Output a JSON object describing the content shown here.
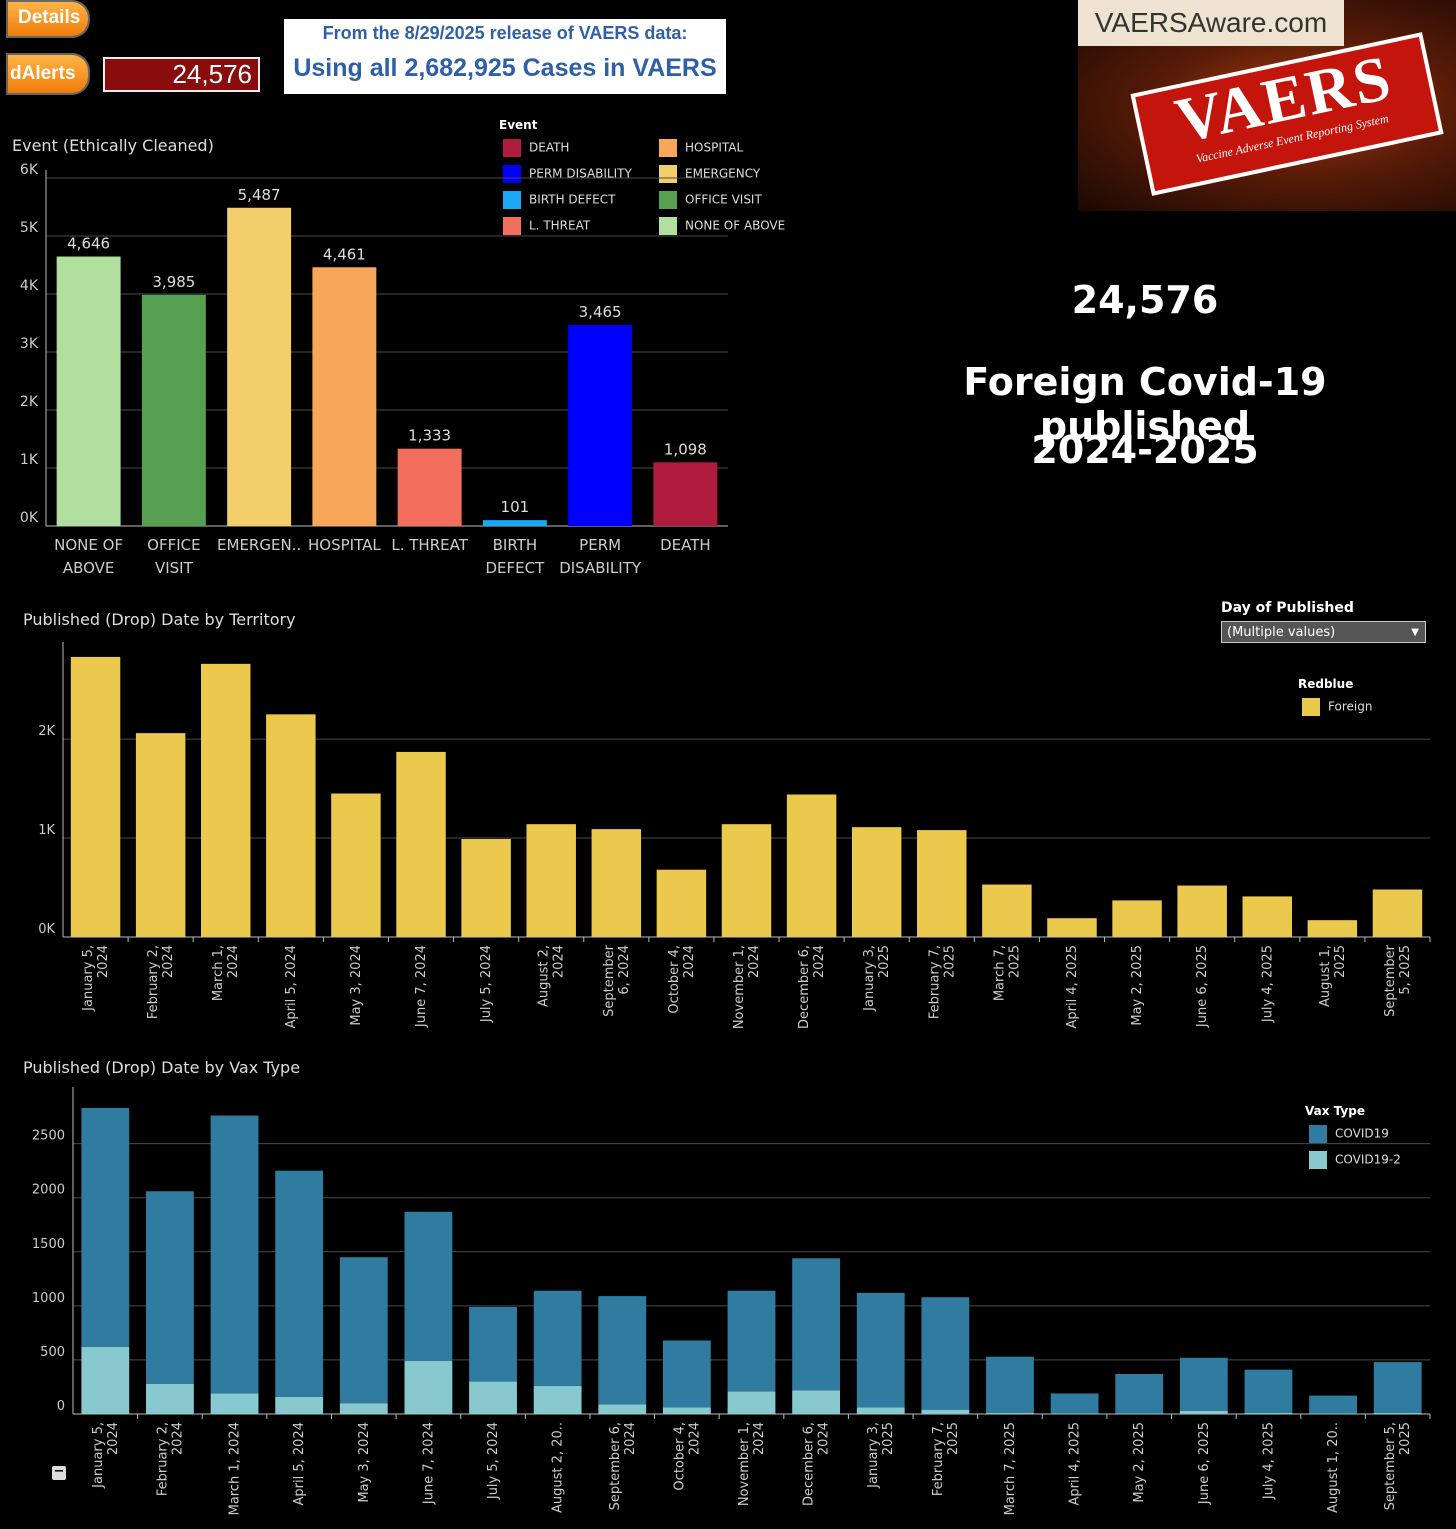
{
  "controls": {
    "details_label": "Details",
    "alerts_label": "dAlerts",
    "counter": "24,576",
    "release_line1": "From the 8/29/2025 release of VAERS data:",
    "release_line2": "Using all 2,682,925 Cases in VAERS"
  },
  "logo": {
    "site": "VAERSAware.com",
    "badge": "VAERS",
    "subtitle": "Vaccine Adverse Event Reporting System"
  },
  "headline": {
    "count": "24,576",
    "line1": "Foreign Covid-19 published",
    "line2": "2024-2025"
  },
  "event_legend": {
    "title": "Event",
    "items": [
      {
        "label": "DEATH",
        "color": "#b01c3e"
      },
      {
        "label": "HOSPITAL",
        "color": "#f7a65a"
      },
      {
        "label": "PERM DISABILITY",
        "color": "#0000ff"
      },
      {
        "label": "EMERGENCY",
        "color": "#f2cf6a"
      },
      {
        "label": "BIRTH DEFECT",
        "color": "#19a8f5"
      },
      {
        "label": "OFFICE VISIT",
        "color": "#56a04f"
      },
      {
        "label": "L. THREAT",
        "color": "#f46e5d"
      },
      {
        "label": "NONE OF ABOVE",
        "color": "#b1dfa0"
      }
    ]
  },
  "day_filter": {
    "label": "Day of Published",
    "value": "(Multiple values)"
  },
  "territory_legend": {
    "title": "Redblue",
    "items": [
      {
        "label": "Foreign",
        "color": "#eac94d"
      }
    ]
  },
  "vax_legend": {
    "title": "Vax Type",
    "items": [
      {
        "label": "COVID19",
        "color": "#307ca1"
      },
      {
        "label": "COVID19-2",
        "color": "#88c9cf"
      }
    ]
  },
  "chart_data": [
    {
      "type": "bar",
      "title": "Event (Ethically Cleaned)",
      "categories": [
        "NONE OF ABOVE",
        "OFFICE VISIT",
        "EMERGEN..",
        "HOSPITAL",
        "L. THREAT",
        "BIRTH DEFECT",
        "PERM DISABILITY",
        "DEATH"
      ],
      "tick_lines": [
        [
          "NONE OF",
          "ABOVE"
        ],
        [
          "OFFICE",
          "VISIT"
        ],
        [
          "EMERGEN.."
        ],
        [
          "HOSPITAL"
        ],
        [
          "L. THREAT"
        ],
        [
          "BIRTH",
          "DEFECT"
        ],
        [
          "PERM",
          "DISABILITY"
        ],
        [
          "DEATH"
        ]
      ],
      "values": [
        4646,
        3985,
        5487,
        4461,
        1333,
        101,
        3465,
        1098
      ],
      "data_labels": [
        "4,646",
        "3,985",
        "5,487",
        "4,461",
        "1,333",
        "101",
        "3,465",
        "1,098"
      ],
      "colors": [
        "#b1dfa0",
        "#56a04f",
        "#f2cf6a",
        "#f7a65a",
        "#f46e5d",
        "#19a8f5",
        "#0000ff",
        "#b01c3e"
      ],
      "yticks": [
        0,
        1000,
        2000,
        3000,
        4000,
        5000,
        6000
      ],
      "ytick_labels": [
        "0K",
        "1K",
        "2K",
        "3K",
        "4K",
        "5K",
        "6K"
      ],
      "ylim": [
        0,
        6000
      ],
      "grid": true
    },
    {
      "type": "bar",
      "title": "Published (Drop) Date by Territory",
      "categories": [
        "January 5, 2024",
        "February 2, 2024",
        "March 1, 2024",
        "April 5, 2024",
        "May 3, 2024",
        "June 7, 2024",
        "July 5, 2024",
        "August 2, 2024",
        "September 6, 2024",
        "October 4, 2024",
        "November 1, 2024",
        "December 6, 2024",
        "January 3, 2025",
        "February 7, 2025",
        "March 7, 2025",
        "April 4, 2025",
        "May 2, 2025",
        "June 6, 2025",
        "July 4, 2025",
        "August 1, 2025",
        "September 5, 2025"
      ],
      "tick_lines": [
        [
          "January 5,",
          "2024"
        ],
        [
          "February 2,",
          "2024"
        ],
        [
          "March 1,",
          "2024"
        ],
        [
          "April 5, 2024"
        ],
        [
          "May 3, 2024"
        ],
        [
          "June 7, 2024"
        ],
        [
          "July 5, 2024"
        ],
        [
          "August 2,",
          "2024"
        ],
        [
          "September",
          "6, 2024"
        ],
        [
          "October 4,",
          "2024"
        ],
        [
          "November 1,",
          "2024"
        ],
        [
          "December 6,",
          "2024"
        ],
        [
          "January 3,",
          "2025"
        ],
        [
          "February 7,",
          "2025"
        ],
        [
          "March 7,",
          "2025"
        ],
        [
          "April 4, 2025"
        ],
        [
          "May 2, 2025"
        ],
        [
          "June 6, 2025"
        ],
        [
          "July 4, 2025"
        ],
        [
          "August 1,",
          "2025"
        ],
        [
          "September",
          "5, 2025"
        ]
      ],
      "series": [
        {
          "name": "Foreign",
          "values": [
            2830,
            2060,
            2760,
            2250,
            1450,
            1870,
            990,
            1140,
            1090,
            680,
            1140,
            1440,
            1110,
            1080,
            530,
            190,
            370,
            520,
            410,
            170,
            480
          ]
        }
      ],
      "yticks": [
        0,
        1000,
        2000
      ],
      "ytick_labels": [
        "0K",
        "1K",
        "2K"
      ],
      "ylim": [
        0,
        2900
      ],
      "grid": true
    },
    {
      "type": "bar",
      "stacked": true,
      "title": "Published (Drop) Date by Vax Type",
      "categories": [
        "January 5, 2024",
        "February 2, 2024",
        "March 1, 2024",
        "April 5, 2024",
        "May 3, 2024",
        "June 7, 2024",
        "July 5, 2024",
        "August 2, 20..",
        "September 6, 2024",
        "October 4, 2024",
        "November 1, 2024",
        "December 6, 2024",
        "January 3, 2025",
        "February 7, 2025",
        "March 7, 2025",
        "April 4, 2025",
        "May 2, 2025",
        "June 6, 2025",
        "July 4, 2025",
        "August 1, 20..",
        "September 5, 2025"
      ],
      "tick_lines": [
        [
          "January 5,",
          "2024"
        ],
        [
          "February 2,",
          "2024"
        ],
        [
          "March 1, 2024"
        ],
        [
          "April 5, 2024"
        ],
        [
          "May 3, 2024"
        ],
        [
          "June 7, 2024"
        ],
        [
          "July 5, 2024"
        ],
        [
          "August 2, 20.."
        ],
        [
          "September 6,",
          "2024"
        ],
        [
          "October 4,",
          "2024"
        ],
        [
          "November 1,",
          "2024"
        ],
        [
          "December 6,",
          "2024"
        ],
        [
          "January 3,",
          "2025"
        ],
        [
          "February 7,",
          "2025"
        ],
        [
          "March 7, 2025"
        ],
        [
          "April 4, 2025"
        ],
        [
          "May 2, 2025"
        ],
        [
          "June 6, 2025"
        ],
        [
          "July 4, 2025"
        ],
        [
          "August 1, 20.."
        ],
        [
          "September 5,",
          "2025"
        ]
      ],
      "series": [
        {
          "name": "COVID19-2",
          "values": [
            620,
            280,
            190,
            160,
            100,
            490,
            300,
            260,
            90,
            60,
            210,
            220,
            60,
            40,
            10,
            5,
            5,
            30,
            10,
            5,
            10
          ]
        },
        {
          "name": "COVID19",
          "values": [
            2210,
            1780,
            2570,
            2090,
            1350,
            1380,
            690,
            880,
            1000,
            620,
            930,
            1220,
            1060,
            1040,
            520,
            185,
            365,
            490,
            400,
            165,
            470
          ]
        }
      ],
      "yticks": [
        0,
        500,
        1000,
        1500,
        2000,
        2500
      ],
      "ytick_labels": [
        "0",
        "500",
        "1000",
        "1500",
        "2000",
        "2500"
      ],
      "ylim": [
        0,
        2950
      ],
      "grid": true
    }
  ]
}
